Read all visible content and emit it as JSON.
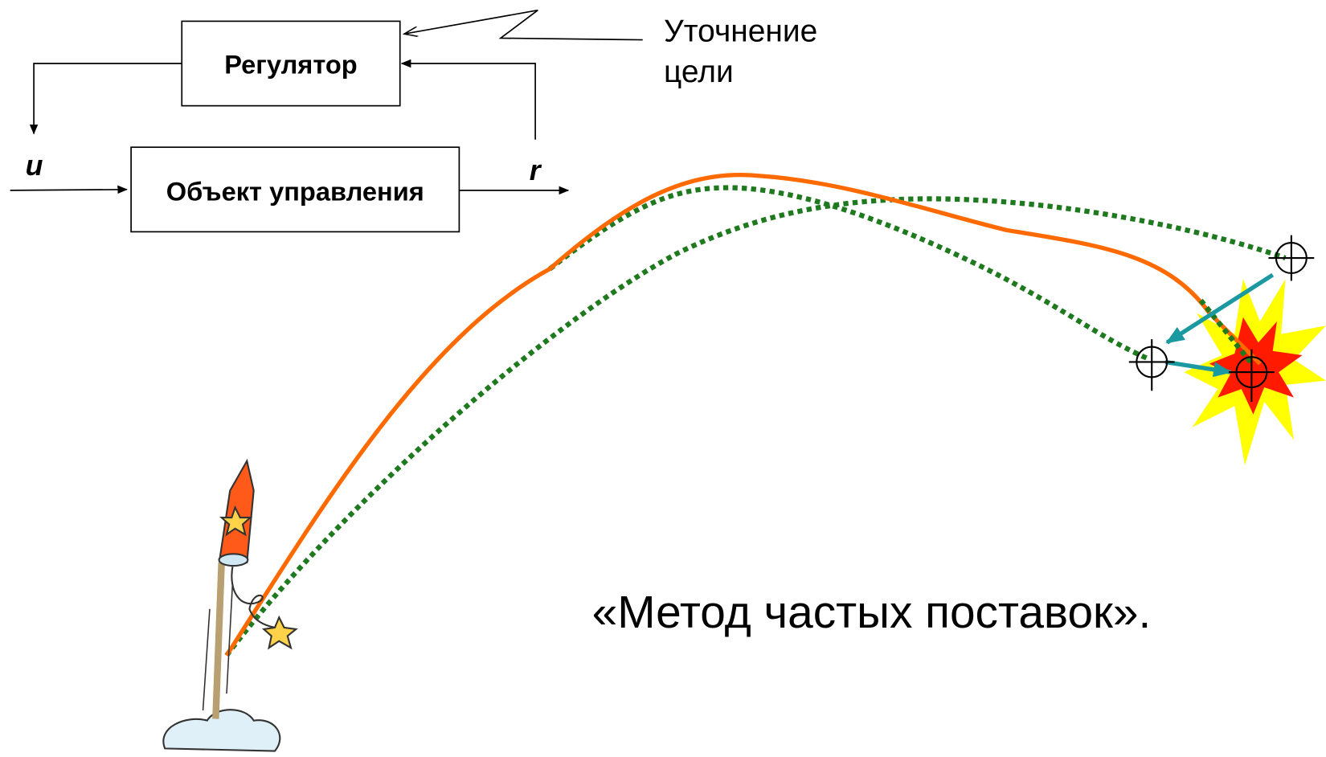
{
  "blocks": {
    "regulator": "Регулятор",
    "plant": "Объект управления"
  },
  "signals": {
    "input": "u",
    "output": "r"
  },
  "target_note": [
    "Уточнение",
    "цели"
  ],
  "caption": "«Метод частых поставок»."
}
